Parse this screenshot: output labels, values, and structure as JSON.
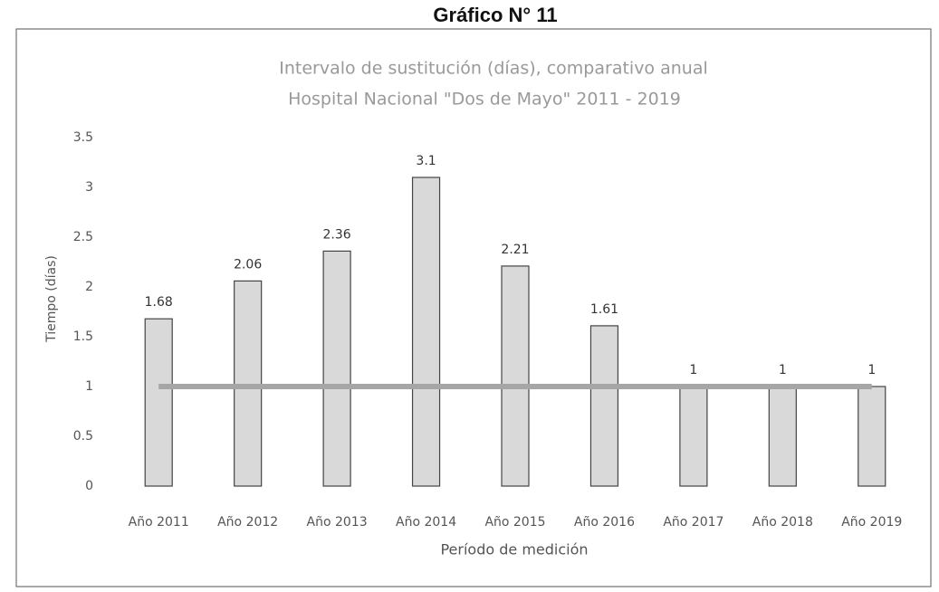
{
  "chart_data": {
    "type": "bar",
    "header": "Gráfico N° 11",
    "title": "Intervalo de sustitución (días), comparativo anual",
    "subtitle": "Hospital Nacional \"Dos de Mayo\" 2011 - 2019",
    "y_label": "Tiempo (días)",
    "x_label": "Período de medición",
    "categories": [
      "Año 2011",
      "Año 2012",
      "Año 2013",
      "Año 2014",
      "Año 2015",
      "Año 2016",
      "Año 2017",
      "Año 2018",
      "Año 2019"
    ],
    "values": [
      1.68,
      2.06,
      2.36,
      3.1,
      2.21,
      1.61,
      1,
      1,
      1
    ],
    "color": "#d9d9d9",
    "reference_line": {
      "value": 1,
      "color": "#a6a6a6"
    },
    "ylim": [
      0,
      3.5
    ],
    "yticks": [
      0,
      0.5,
      1,
      1.5,
      2,
      2.5,
      3,
      3.5
    ],
    "grid": false
  }
}
